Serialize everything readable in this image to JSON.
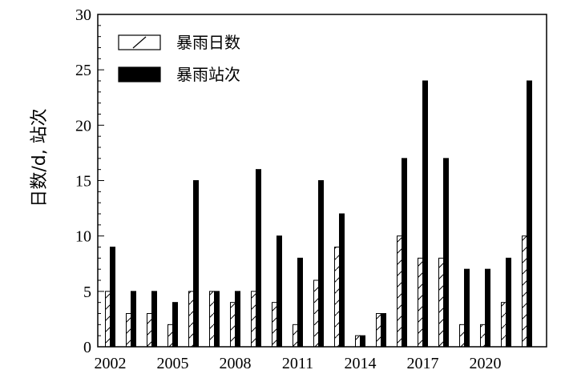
{
  "chart_data": {
    "type": "bar",
    "title": "",
    "xlabel": "",
    "ylabel": "日数/d, 站次",
    "ylim": [
      0,
      30
    ],
    "yticks": [
      0,
      5,
      10,
      15,
      20,
      25,
      30
    ],
    "grid": false,
    "legend_position": "top-left",
    "categories": [
      "2002",
      "2003",
      "2004",
      "2005",
      "2006",
      "2007",
      "2008",
      "2009",
      "2010",
      "2011",
      "2012",
      "2013",
      "2014",
      "2015",
      "2016",
      "2017",
      "2018",
      "2019",
      "2020",
      "2021",
      "2022"
    ],
    "xtick_labels": [
      "2002",
      "2005",
      "2008",
      "2011",
      "2014",
      "2017",
      "2020"
    ],
    "series": [
      {
        "name": "暴雨日数",
        "style": "hatched",
        "values": [
          5,
          3,
          3,
          2,
          5,
          5,
          4,
          5,
          4,
          2,
          6,
          9,
          1,
          3,
          10,
          8,
          8,
          2,
          2,
          4,
          10
        ]
      },
      {
        "name": "暴雨站次",
        "style": "solid",
        "color": "#000000",
        "values": [
          9,
          5,
          5,
          4,
          15,
          5,
          5,
          16,
          10,
          8,
          15,
          12,
          1,
          3,
          17,
          24,
          17,
          7,
          7,
          8,
          24
        ]
      }
    ]
  }
}
